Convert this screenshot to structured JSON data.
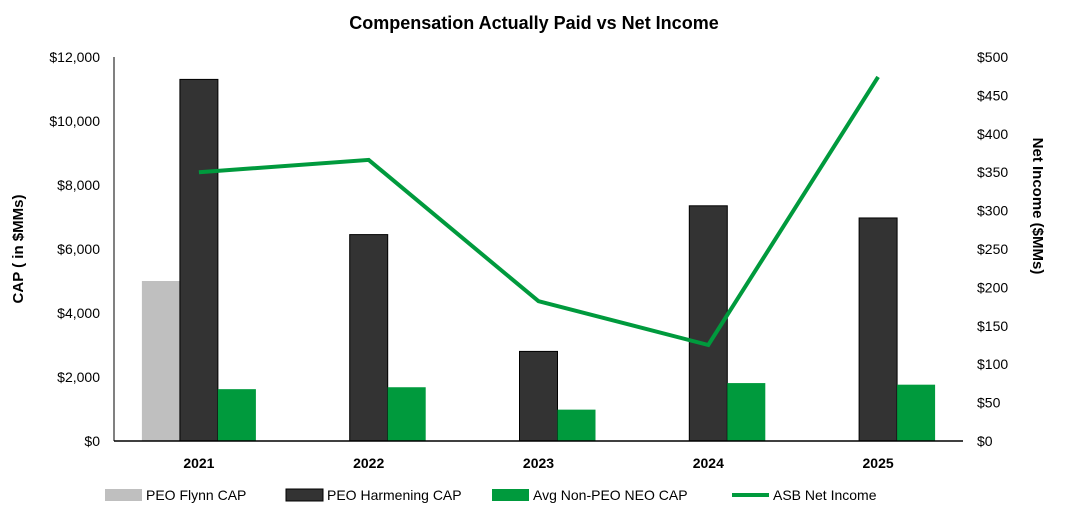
{
  "chart_data": {
    "type": "bar",
    "title": "Compensation Actually Paid vs Net Income",
    "categories": [
      "2021",
      "2022",
      "2023",
      "2024",
      "2025"
    ],
    "ylabel": "CAP ( in $MMs)",
    "y2label": "Net Income ($MMs)",
    "ylim": [
      0,
      12000
    ],
    "y2lim": [
      0,
      500
    ],
    "yticks": [
      "$0",
      "$2,000",
      "$4,000",
      "$6,000",
      "$8,000",
      "$10,000",
      "$12,000"
    ],
    "y2ticks": [
      "$0",
      "$50",
      "$100",
      "$150",
      "$200",
      "$250",
      "$300",
      "$350",
      "$400",
      "$450",
      "$500"
    ],
    "grid": false,
    "legend_position": "bottom",
    "series": [
      {
        "name": "PEO Flynn CAP",
        "type": "bar",
        "axis": "left",
        "color": "#bfbfbf",
        "values": [
          5000,
          null,
          null,
          null,
          null
        ]
      },
      {
        "name": "PEO Harmening CAP",
        "type": "bar",
        "axis": "left",
        "color": "#333333",
        "values": [
          11300,
          6450,
          2800,
          7350,
          6970
        ]
      },
      {
        "name": "Avg Non-PEO NEO CAP",
        "type": "bar",
        "axis": "left",
        "color": "#009a3d",
        "values": [
          1620,
          1680,
          980,
          1810,
          1760
        ]
      },
      {
        "name": "ASB Net Income",
        "type": "line",
        "axis": "right",
        "color": "#009a3d",
        "values": [
          350,
          366,
          182,
          125,
          474
        ]
      }
    ]
  }
}
